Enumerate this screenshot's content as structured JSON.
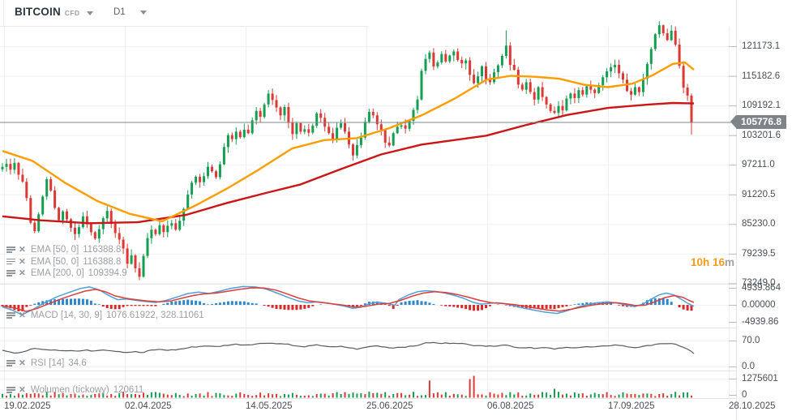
{
  "header": {
    "symbol": "BITCOIN",
    "instrument_badge": "CFD",
    "timeframe": "D1"
  },
  "countdown": {
    "time": "10h 16",
    "suffix": "m"
  },
  "price_badge": "105776.8",
  "panels": {
    "main": {
      "y_labels": [
        "121173.1",
        "115182.6",
        "109192.1",
        "103201.6",
        "97211.0",
        "91220.5",
        "85230.0",
        "79239.5",
        "73249.0"
      ],
      "legend": [
        {
          "name": "EMA [50, 0]",
          "value": "116388.8"
        },
        {
          "name": "EMA [50, 0]",
          "value": "116388.8"
        },
        {
          "name": "EMA [200, 0]",
          "value": "109394.9"
        }
      ]
    },
    "macd": {
      "legend_name": "MACD [14, 30, 9]",
      "legend_values": "1076.61922,  328.11061",
      "y_labels": [
        "4939.864",
        "0.00000",
        "-4939.86"
      ]
    },
    "rsi": {
      "legend_name": "RSI [14]",
      "legend_value": "34.6",
      "y_labels": [
        "70.0",
        "0.0"
      ]
    },
    "volume": {
      "legend_name": "Wolumen (tickowy)",
      "legend_value": "120611",
      "y_labels": [
        "1275601",
        "0"
      ]
    }
  },
  "x_axis_labels": [
    "19.02.2025",
    "02.04.2025",
    "14.05.2025",
    "25.06.2025",
    "06.08.2025",
    "17.09.2025",
    "28.10.2025"
  ],
  "colors": {
    "up": "#149e51",
    "down": "#dd3833",
    "ema_fast": "#ff9d00",
    "ema_slow": "#cb1616",
    "macd_line": "#4da0d8",
    "macd_signal": "#e03c39",
    "hist_pos": "#2f86c8",
    "hist_neg": "#d62a2a",
    "rsi": "#565b60",
    "price_line": "#80878c",
    "badge_bg": "#7d858a",
    "grid": "#f0f0f2",
    "divider": "#e3e4e6",
    "tick": "#b9bec2"
  },
  "chart_data": {
    "type": "candlestick",
    "symbol": "BITCOIN CFD",
    "timeframe": "D1",
    "title": "BITCOIN CFD D1 with EMA(50), EMA(200), MACD(14,30,9), RSI(14), tick volume",
    "x_tick_dates": [
      "19.02.2025",
      "02.04.2025",
      "14.05.2025",
      "25.06.2025",
      "06.08.2025",
      "17.09.2025",
      "28.10.2025"
    ],
    "price_ticks": [
      121173.1,
      115182.6,
      109192.1,
      103201.6,
      97211.0,
      91220.5,
      85230.0,
      79239.5,
      73249.0
    ],
    "current_price": 105776.8,
    "closes": [
      96800,
      97400,
      96200,
      97600,
      95200,
      93800,
      90500,
      85500,
      83800,
      87200,
      90800,
      94300,
      92000,
      88500,
      86000,
      87800,
      86200,
      84500,
      83200,
      84600,
      86800,
      85200,
      83600,
      82300,
      84200,
      86400,
      87900,
      85300,
      83400,
      82100,
      80300,
      77200,
      78900,
      76300,
      74600,
      78800,
      82400,
      84100,
      83200,
      85000,
      83600,
      84900,
      85400,
      84100,
      85900,
      88300,
      91200,
      93600,
      94800,
      93700,
      94900,
      96800,
      95900,
      94700,
      97300,
      100800,
      103200,
      102400,
      103900,
      102800,
      104300,
      103600,
      106200,
      108100,
      106900,
      109400,
      111600,
      110300,
      108800,
      107200,
      108900,
      105800,
      103400,
      105600,
      103900,
      104400,
      103700,
      105100,
      107600,
      106700,
      104900,
      103600,
      102300,
      104700,
      105600,
      103900,
      101300,
      99100,
      101200,
      102700,
      105900,
      107900,
      107200,
      105400,
      104300,
      101700,
      101100,
      103600,
      104900,
      105200,
      104500,
      106100,
      108300,
      110400,
      116200,
      118600,
      119900,
      117100,
      117900,
      119600,
      118100,
      119300,
      120100,
      118400,
      117700,
      118300,
      115400,
      113700,
      115100,
      117100,
      114400,
      113900,
      115900,
      117300,
      119200,
      121300,
      117400,
      116400,
      113400,
      112400,
      113900,
      111900,
      110400,
      112900,
      110900,
      109400,
      108100,
      107700,
      109100,
      108200,
      110600,
      111600,
      110700,
      112300,
      111400,
      113100,
      112400,
      111700,
      113300,
      114900,
      116100,
      116900,
      117400,
      115700,
      114400,
      112100,
      111400,
      112900,
      111900,
      114600,
      117600,
      120600,
      123600,
      125400,
      123800,
      122400,
      124300,
      121500,
      117200,
      112800,
      111200,
      105776.8
    ],
    "wick_overrides": {
      "34": {
        "low": 73900
      },
      "125": {
        "high": 124400
      },
      "163": {
        "high": 126200
      },
      "171": {
        "low": 103300
      }
    },
    "ema_fast_value": 116388.8,
    "ema_slow_value": 109394.9,
    "ema_fast_points": [
      [
        3,
        100000
      ],
      [
        40,
        98000
      ],
      [
        80,
        93600
      ],
      [
        120,
        89900
      ],
      [
        160,
        87300
      ],
      [
        200,
        85800
      ],
      [
        240,
        88900
      ],
      [
        280,
        92400
      ],
      [
        320,
        96300
      ],
      [
        360,
        100500
      ],
      [
        400,
        102200
      ],
      [
        440,
        102600
      ],
      [
        480,
        104600
      ],
      [
        520,
        107200
      ],
      [
        560,
        110500
      ],
      [
        600,
        114400
      ],
      [
        630,
        115200
      ],
      [
        660,
        115000
      ],
      [
        690,
        114600
      ],
      [
        720,
        113400
      ],
      [
        750,
        112900
      ],
      [
        780,
        113600
      ],
      [
        805,
        115300
      ],
      [
        830,
        117600
      ],
      [
        845,
        117900
      ],
      [
        856,
        116400
      ]
    ],
    "ema_slow_points": [
      [
        3,
        86800
      ],
      [
        50,
        86000
      ],
      [
        110,
        85400
      ],
      [
        170,
        85600
      ],
      [
        230,
        87100
      ],
      [
        280,
        89500
      ],
      [
        330,
        91600
      ],
      [
        370,
        93200
      ],
      [
        420,
        96300
      ],
      [
        470,
        99300
      ],
      [
        520,
        101300
      ],
      [
        560,
        102200
      ],
      [
        600,
        103100
      ],
      [
        650,
        105300
      ],
      [
        700,
        107300
      ],
      [
        750,
        108700
      ],
      [
        800,
        109400
      ],
      [
        830,
        109700
      ],
      [
        856,
        109600
      ]
    ],
    "macd": {
      "value_line": 1076.61922,
      "value_signal": 328.11061,
      "line": [
        [
          3,
          -600
        ],
        [
          15,
          -1500
        ],
        [
          27,
          -2900
        ],
        [
          40,
          -1400
        ],
        [
          55,
          600
        ],
        [
          70,
          2300
        ],
        [
          85,
          3600
        ],
        [
          100,
          4800
        ],
        [
          110,
          5200
        ],
        [
          122,
          4400
        ],
        [
          135,
          2600
        ],
        [
          145,
          1500
        ],
        [
          155,
          1700
        ],
        [
          165,
          1400
        ],
        [
          178,
          1000
        ],
        [
          192,
          700
        ],
        [
          205,
          1300
        ],
        [
          220,
          2400
        ],
        [
          232,
          3300
        ],
        [
          245,
          3700
        ],
        [
          258,
          3300
        ],
        [
          270,
          3900
        ],
        [
          285,
          4800
        ],
        [
          300,
          5300
        ],
        [
          315,
          5200
        ],
        [
          328,
          4600
        ],
        [
          342,
          3400
        ],
        [
          356,
          2100
        ],
        [
          368,
          1100
        ],
        [
          380,
          600
        ],
        [
          392,
          900
        ],
        [
          404,
          500
        ],
        [
          415,
          100
        ],
        [
          425,
          -400
        ],
        [
          435,
          -1000
        ],
        [
          445,
          -700
        ],
        [
          455,
          300
        ],
        [
          465,
          800
        ],
        [
          475,
          500
        ],
        [
          487,
          -100
        ],
        [
          492,
          1500
        ],
        [
          504,
          2900
        ],
        [
          515,
          3800
        ],
        [
          525,
          4100
        ],
        [
          537,
          3900
        ],
        [
          549,
          3400
        ],
        [
          560,
          2800
        ],
        [
          572,
          1900
        ],
        [
          583,
          800
        ],
        [
          593,
          200
        ],
        [
          603,
          400
        ],
        [
          613,
          600
        ],
        [
          623,
          300
        ],
        [
          633,
          -200
        ],
        [
          645,
          -900
        ],
        [
          658,
          -1500
        ],
        [
          672,
          -2100
        ],
        [
          687,
          -2500
        ],
        [
          700,
          -1700
        ],
        [
          712,
          -700
        ],
        [
          724,
          100
        ],
        [
          737,
          600
        ],
        [
          750,
          900
        ],
        [
          762,
          500
        ],
        [
          773,
          -100
        ],
        [
          783,
          -500
        ],
        [
          793,
          200
        ],
        [
          803,
          1600
        ],
        [
          813,
          2900
        ],
        [
          822,
          3400
        ],
        [
          831,
          2900
        ],
        [
          840,
          1700
        ],
        [
          848,
          500
        ],
        [
          856,
          -400
        ]
      ],
      "signal": [
        [
          3,
          -300
        ],
        [
          20,
          -1000
        ],
        [
          32,
          -1900
        ],
        [
          45,
          -1100
        ],
        [
          60,
          300
        ],
        [
          75,
          1700
        ],
        [
          90,
          2900
        ],
        [
          105,
          4000
        ],
        [
          118,
          4500
        ],
        [
          130,
          3800
        ],
        [
          142,
          2600
        ],
        [
          155,
          1900
        ],
        [
          168,
          1500
        ],
        [
          182,
          1100
        ],
        [
          196,
          900
        ],
        [
          210,
          1100
        ],
        [
          224,
          1900
        ],
        [
          238,
          2700
        ],
        [
          252,
          3200
        ],
        [
          266,
          3400
        ],
        [
          280,
          3900
        ],
        [
          295,
          4500
        ],
        [
          310,
          4900
        ],
        [
          325,
          4900
        ],
        [
          340,
          4300
        ],
        [
          354,
          3200
        ],
        [
          368,
          2000
        ],
        [
          382,
          1100
        ],
        [
          396,
          700
        ],
        [
          410,
          300
        ],
        [
          424,
          -100
        ],
        [
          438,
          -600
        ],
        [
          452,
          -400
        ],
        [
          466,
          200
        ],
        [
          480,
          400
        ],
        [
          494,
          1300
        ],
        [
          508,
          2500
        ],
        [
          522,
          3400
        ],
        [
          536,
          3800
        ],
        [
          550,
          3600
        ],
        [
          564,
          3000
        ],
        [
          578,
          2200
        ],
        [
          592,
          1300
        ],
        [
          606,
          600
        ],
        [
          620,
          400
        ],
        [
          634,
          100
        ],
        [
          648,
          -400
        ],
        [
          662,
          -1000
        ],
        [
          676,
          -1500
        ],
        [
          690,
          -1800
        ],
        [
          704,
          -1300
        ],
        [
          718,
          -600
        ],
        [
          732,
          0
        ],
        [
          746,
          400
        ],
        [
          760,
          600
        ],
        [
          772,
          300
        ],
        [
          784,
          -200
        ],
        [
          796,
          -100
        ],
        [
          808,
          900
        ],
        [
          820,
          2100
        ],
        [
          832,
          2700
        ],
        [
          842,
          2200
        ],
        [
          850,
          1300
        ],
        [
          856,
          700
        ]
      ],
      "ticks": [
        4939.864,
        0,
        -4939.86
      ]
    },
    "rsi": {
      "current": 34.6,
      "ticks": [
        70.0,
        0.0
      ],
      "points": [
        [
          3,
          45
        ],
        [
          12,
          39
        ],
        [
          22,
          36
        ],
        [
          32,
          42
        ],
        [
          45,
          50
        ],
        [
          55,
          44
        ],
        [
          66,
          46
        ],
        [
          76,
          43
        ],
        [
          86,
          44
        ],
        [
          96,
          41
        ],
        [
          106,
          44
        ],
        [
          116,
          42
        ],
        [
          126,
          46
        ],
        [
          136,
          43
        ],
        [
          146,
          41
        ],
        [
          156,
          38
        ],
        [
          166,
          40
        ],
        [
          176,
          37
        ],
        [
          186,
          44
        ],
        [
          196,
          46
        ],
        [
          206,
          44
        ],
        [
          216,
          45
        ],
        [
          226,
          48
        ],
        [
          236,
          52
        ],
        [
          246,
          54
        ],
        [
          256,
          56
        ],
        [
          264,
          53
        ],
        [
          272,
          55
        ],
        [
          282,
          58
        ],
        [
          292,
          60
        ],
        [
          302,
          58
        ],
        [
          312,
          60
        ],
        [
          322,
          62
        ],
        [
          332,
          64
        ],
        [
          342,
          61
        ],
        [
          352,
          62
        ],
        [
          362,
          56
        ],
        [
          372,
          53
        ],
        [
          382,
          55
        ],
        [
          392,
          58
        ],
        [
          402,
          55
        ],
        [
          412,
          52
        ],
        [
          422,
          54
        ],
        [
          432,
          50
        ],
        [
          442,
          47
        ],
        [
          452,
          52
        ],
        [
          462,
          56
        ],
        [
          472,
          54
        ],
        [
          482,
          50
        ],
        [
          492,
          52
        ],
        [
          502,
          53
        ],
        [
          512,
          55
        ],
        [
          522,
          62
        ],
        [
          532,
          65
        ],
        [
          542,
          62
        ],
        [
          552,
          63
        ],
        [
          562,
          64
        ],
        [
          572,
          61
        ],
        [
          582,
          57
        ],
        [
          592,
          58
        ],
        [
          602,
          54
        ],
        [
          612,
          56
        ],
        [
          622,
          59
        ],
        [
          632,
          54
        ],
        [
          642,
          50
        ],
        [
          652,
          52
        ],
        [
          662,
          49
        ],
        [
          672,
          51
        ],
        [
          682,
          47
        ],
        [
          692,
          49
        ],
        [
          702,
          52
        ],
        [
          712,
          51
        ],
        [
          722,
          53
        ],
        [
          732,
          52
        ],
        [
          742,
          54
        ],
        [
          752,
          57
        ],
        [
          762,
          58
        ],
        [
          772,
          54
        ],
        [
          782,
          51
        ],
        [
          792,
          53
        ],
        [
          802,
          57
        ],
        [
          812,
          62
        ],
        [
          822,
          60
        ],
        [
          832,
          62
        ],
        [
          842,
          52
        ],
        [
          850,
          45
        ],
        [
          856,
          34.6
        ]
      ]
    },
    "volume": {
      "scale_max": 1275601,
      "current": 120611,
      "spikes": [
        [
          530,
          1000000,
          "down"
        ],
        [
          578,
          1080000,
          "down"
        ],
        [
          583,
          1275601,
          "down"
        ],
        [
          683,
          520000,
          "up"
        ]
      ]
    }
  }
}
